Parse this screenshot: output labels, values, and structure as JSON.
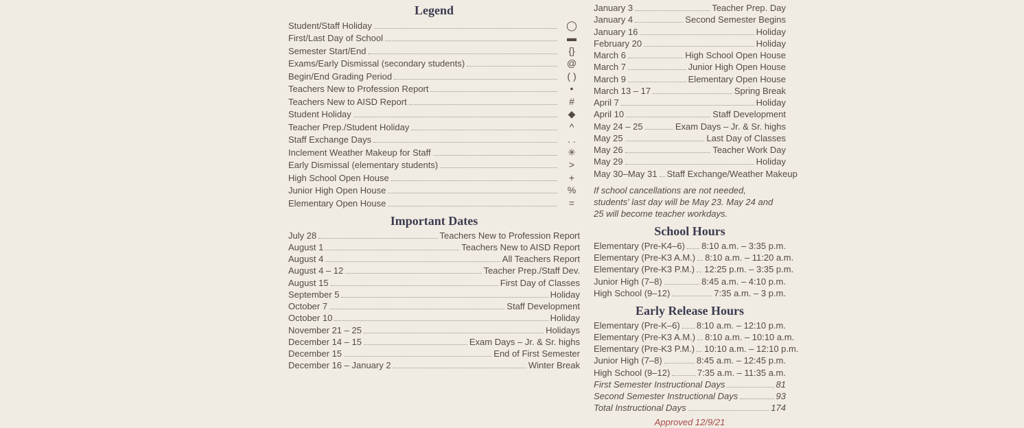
{
  "headings": {
    "legend": "Legend",
    "important_dates": "Important Dates",
    "school_hours": "School Hours",
    "early_release": "Early Release Hours"
  },
  "legend": [
    {
      "label": "Student/Staff Holiday",
      "sym": "◯"
    },
    {
      "label": "First/Last Day of School",
      "sym": "▬"
    },
    {
      "label": "Semester Start/End",
      "sym": "{}"
    },
    {
      "label": "Exams/Early Dismissal (secondary students)",
      "sym": "@"
    },
    {
      "label": "Begin/End Grading Period",
      "sym": "( )"
    },
    {
      "label": "Teachers New to Profession Report",
      "sym": "•"
    },
    {
      "label": "Teachers New to AISD Report",
      "sym": "#"
    },
    {
      "label": "Student Holiday",
      "sym": "◆"
    },
    {
      "label": "Teacher Prep./Student Holiday",
      "sym": "^"
    },
    {
      "label": "Staff Exchange Days",
      "sym": ". ."
    },
    {
      "label": "Inclement Weather Makeup for Staff",
      "sym": "✳"
    },
    {
      "label": "Early Dismissal (elementary students)",
      "sym": ">"
    },
    {
      "label": "High School Open House",
      "sym": "+"
    },
    {
      "label": "Junior High Open House",
      "sym": "%"
    },
    {
      "label": "Elementary Open House",
      "sym": "="
    }
  ],
  "dates1": [
    {
      "d": "July 28",
      "e": "Teachers New to Profession Report"
    },
    {
      "d": "August 1",
      "e": "Teachers New to AISD Report"
    },
    {
      "d": "August 4",
      "e": "All Teachers Report"
    },
    {
      "d": "August 4 – 12",
      "e": "Teacher Prep./Staff Dev."
    },
    {
      "d": "August 15",
      "e": "First Day of Classes"
    },
    {
      "d": "September 5",
      "e": "Holiday"
    },
    {
      "d": "October 7",
      "e": "Staff Development"
    },
    {
      "d": "October 10",
      "e": "Holiday"
    },
    {
      "d": "November 21 – 25",
      "e": "Holidays"
    },
    {
      "d": "December 14 – 15",
      "e": "Exam Days – Jr. & Sr. highs"
    },
    {
      "d": "December 15",
      "e": "End of First Semester"
    },
    {
      "d": "December 16 – January 2",
      "e": "Winter Break"
    }
  ],
  "dates2": [
    {
      "d": "January 3",
      "e": "Teacher Prep. Day"
    },
    {
      "d": "January 4",
      "e": "Second Semester Begins"
    },
    {
      "d": "January 16",
      "e": "Holiday"
    },
    {
      "d": "February 20",
      "e": "Holiday"
    },
    {
      "d": "March 6",
      "e": "High School Open House"
    },
    {
      "d": "March 7",
      "e": "Junior High Open House"
    },
    {
      "d": "March 9",
      "e": "Elementary Open House"
    },
    {
      "d": "March 13 – 17",
      "e": "Spring Break"
    },
    {
      "d": "April 7",
      "e": "Holiday"
    },
    {
      "d": "April 10",
      "e": "Staff Development"
    },
    {
      "d": "May 24 – 25",
      "e": "Exam Days – Jr. & Sr. highs"
    },
    {
      "d": "May 25",
      "e": "Last Day of Classes"
    },
    {
      "d": "May 26",
      "e": "Teacher Work Day"
    },
    {
      "d": "May 29",
      "e": "Holiday"
    },
    {
      "d": "May 30–May 31",
      "e": "Staff Exchange/Weather Makeup"
    }
  ],
  "note": "If school cancellations are not needed, students' last day will be May 23. May 24 and 25 will become teacher workdays.",
  "school_hours": [
    {
      "g": "Elementary (Pre-K4–6)",
      "t": "8:10 a.m. – 3:35 p.m."
    },
    {
      "g": "Elementary (Pre-K3 A.M.)",
      "t": "8:10 a.m. – 11:20 a.m."
    },
    {
      "g": "Elementary (Pre-K3 P.M.)",
      "t": "12:25 p.m. – 3:35 p.m."
    },
    {
      "g": "Junior High (7–8)",
      "t": "8:45 a.m. – 4:10 p.m."
    },
    {
      "g": "High School (9–12)",
      "t": "7:35 a.m. – 3 p.m."
    }
  ],
  "early_release": [
    {
      "g": "Elementary (Pre-K–6)",
      "t": "8:10 a.m. – 12:10 p.m."
    },
    {
      "g": "Elementary (Pre-K3 A.M.)",
      "t": "8:10 a.m. – 10:10 a.m."
    },
    {
      "g": "Elementary (Pre-K3 P.M.)",
      "t": "10:10 a.m. – 12:10 p.m."
    },
    {
      "g": "Junior High (7–8)",
      "t": "8:45 a.m. – 12:45 p.m."
    },
    {
      "g": "High School (9–12)",
      "t": "7:35 a.m. – 11:35 a.m."
    }
  ],
  "totals": [
    {
      "l": "First Semester Instructional Days",
      "v": "81"
    },
    {
      "l": "Second Semester Instructional Days",
      "v": "93"
    },
    {
      "l": "Total Instructional Days",
      "v": "174"
    }
  ],
  "approved": "Approved 12/9/21"
}
